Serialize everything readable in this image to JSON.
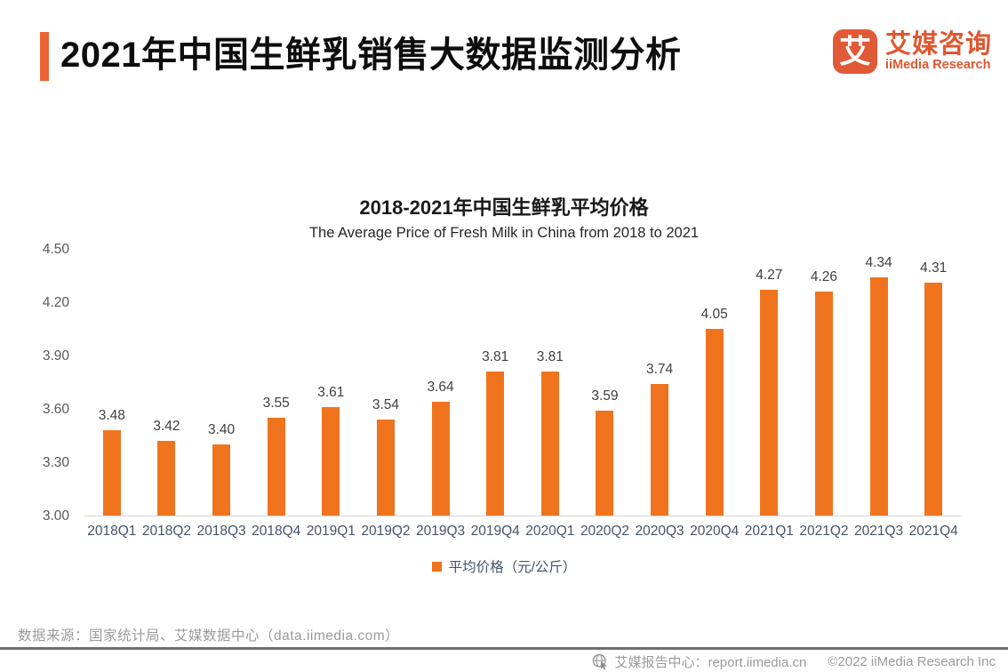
{
  "header": {
    "title": "2021年中国生鲜乳销售大数据监测分析",
    "logo": {
      "mark": "艾",
      "name_cn": "艾媒咨询",
      "name_en": "iiMedia Research"
    }
  },
  "chart_data": {
    "type": "bar",
    "title": "2018-2021年中国生鲜乳平均价格",
    "subtitle": "The Average Price of Fresh Milk in China from 2018 to 2021",
    "categories": [
      "2018Q1",
      "2018Q2",
      "2018Q3",
      "2018Q4",
      "2019Q1",
      "2019Q2",
      "2019Q3",
      "2019Q4",
      "2020Q1",
      "2020Q2",
      "2020Q3",
      "2020Q4",
      "2021Q1",
      "2021Q2",
      "2021Q3",
      "2021Q4"
    ],
    "values": [
      3.48,
      3.42,
      3.4,
      3.55,
      3.61,
      3.54,
      3.64,
      3.81,
      3.81,
      3.59,
      3.74,
      4.05,
      4.27,
      4.26,
      4.34,
      4.31
    ],
    "value_labels": [
      "3.48",
      "3.42",
      "3.40",
      "3.55",
      "3.61",
      "3.54",
      "3.64",
      "3.81",
      "3.81",
      "3.59",
      "3.74",
      "4.05",
      "4.27",
      "4.26",
      "4.34",
      "4.31"
    ],
    "legend": "平均价格（元/公斤）",
    "xlabel": "",
    "ylabel": "",
    "ylim": [
      3.0,
      4.5
    ],
    "y_ticks": [
      "4.50",
      "4.20",
      "3.90",
      "3.60",
      "3.30",
      "3.00"
    ],
    "grid": false,
    "legend_position": "bottom",
    "bar_color": "#F0731E"
  },
  "footer": {
    "source": "数据来源：国家统计局、艾媒数据中心（data.iimedia.com）",
    "report_center": "艾媒报告中心：report.iimedia.cn",
    "copyright": "©2022  iiMedia Research  Inc"
  }
}
